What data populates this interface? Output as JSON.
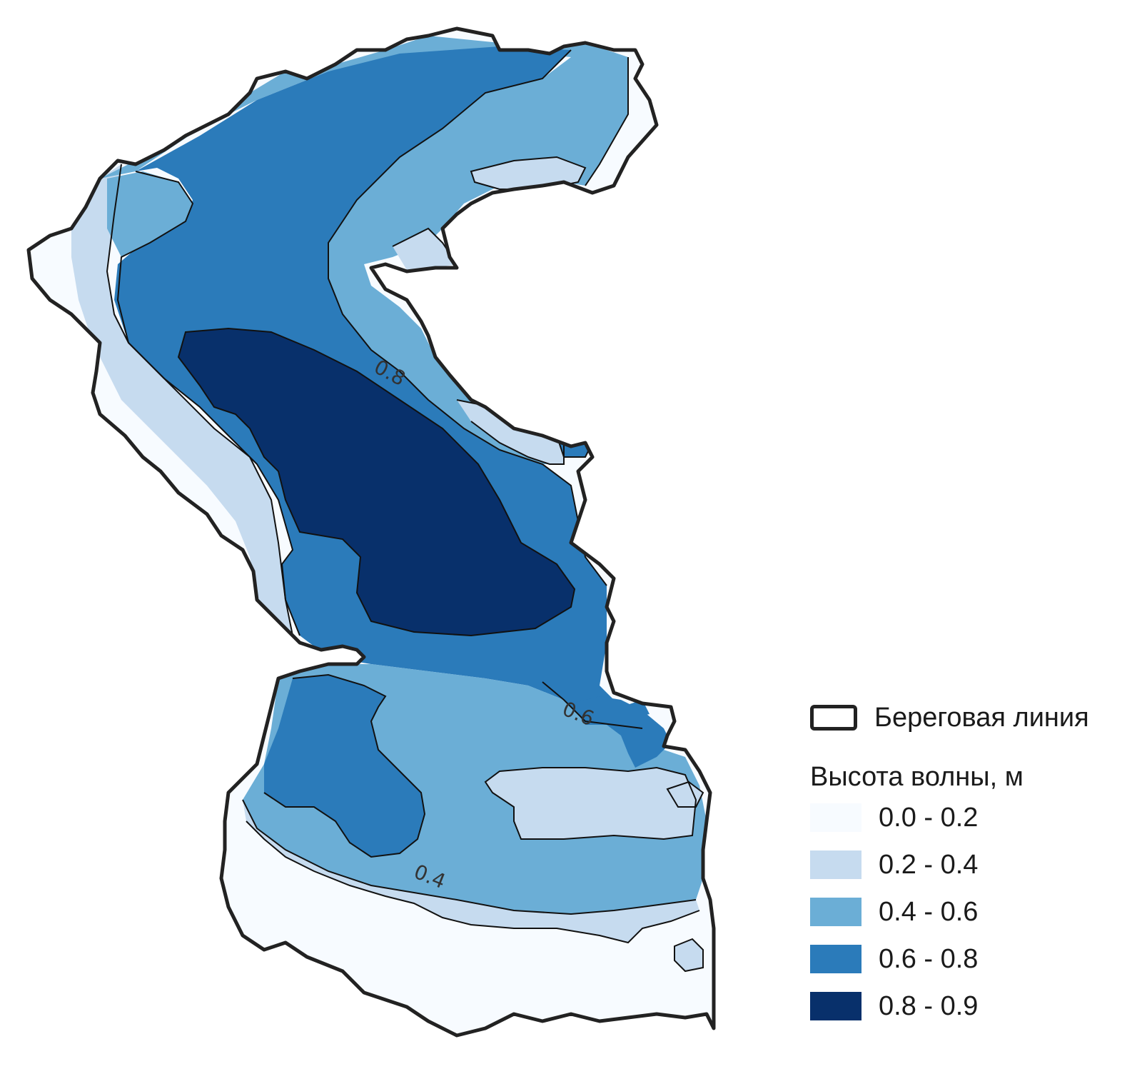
{
  "map": {
    "contour_labels": [
      "0.8",
      "0.6",
      "0.4"
    ]
  },
  "legend": {
    "coastline_label": "Береговая линия",
    "title": "Высота волны, м",
    "classes": [
      {
        "label": "0.0 - 0.2",
        "color": "#f7fbff"
      },
      {
        "label": "0.2 - 0.4",
        "color": "#c6dbef"
      },
      {
        "label": "0.4 - 0.6",
        "color": "#6baed6"
      },
      {
        "label": "0.6 - 0.8",
        "color": "#2b7bba"
      },
      {
        "label": "0.8 - 0.9",
        "color": "#08306b"
      }
    ],
    "coastline_color": "#222222"
  }
}
